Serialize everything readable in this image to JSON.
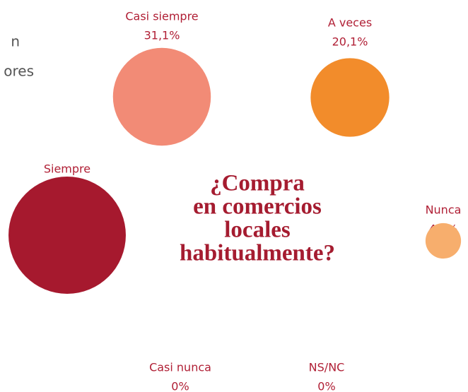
{
  "chart_data": {
    "type": "bubble",
    "title": [
      "¿Compra",
      "en comercios",
      "locales",
      "habitualmente?"
    ],
    "fragments": [
      "n",
      "ores"
    ],
    "categories": [
      "Casi siempre",
      "A veces",
      "Siempre",
      "Nunca",
      "Casi nunca",
      "NS/NC"
    ],
    "values": [
      31.1,
      20.1,
      44.7,
      4.1,
      0,
      0
    ],
    "value_labels": [
      "31,1%",
      "20,1%",
      "44,7%",
      "4,1%",
      "0%",
      "0%"
    ],
    "colors": [
      "#f28b76",
      "#f28c2b",
      "#a6192e",
      "#f7ae6d",
      null,
      null
    ]
  }
}
